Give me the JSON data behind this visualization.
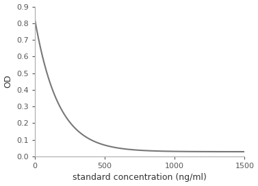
{
  "xlabel": "standard concentration (ng/ml)",
  "ylabel": "OD",
  "xlim": [
    0,
    1500
  ],
  "ylim": [
    0,
    0.9
  ],
  "xticks": [
    0,
    500,
    1000,
    1500
  ],
  "yticks": [
    0.0,
    0.1,
    0.2,
    0.3,
    0.4,
    0.5,
    0.6,
    0.7,
    0.8,
    0.9
  ],
  "line_color": "#777777",
  "line_width": 1.5,
  "background_color": "#ffffff",
  "curve_a": 0.795,
  "curve_b": 0.028,
  "curve_k": 0.006,
  "curve_x_start": 0,
  "curve_x_end": 1500,
  "spine_color": "#aaaaaa",
  "tick_color": "#555555",
  "label_color": "#333333",
  "xlabel_fontsize": 9,
  "ylabel_fontsize": 9,
  "tick_fontsize": 8
}
